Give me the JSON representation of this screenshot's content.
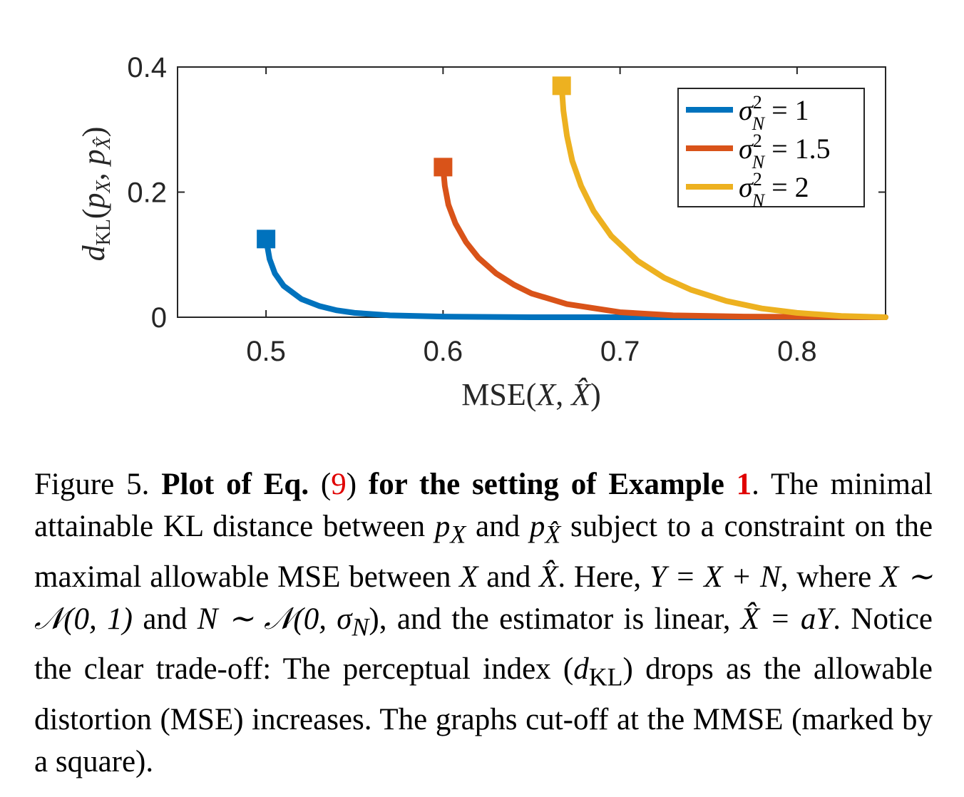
{
  "chart_data": {
    "type": "line",
    "xlabel": "MSE(X, X̂)",
    "ylabel": "d_KL(p_X, p_X̂)",
    "xlim": [
      0.45,
      0.85
    ],
    "ylim": [
      0,
      0.4
    ],
    "xticks": [
      "0.5",
      "0.6",
      "0.7",
      "0.8"
    ],
    "yticks": [
      "0",
      "0.2",
      "0.4"
    ],
    "grid": false,
    "legend_position": "top-right",
    "series": [
      {
        "name": "σ²_N = 1",
        "label_text": "σ",
        "label_sup": "2",
        "label_sub": "N",
        "label_rest": " = 1",
        "color": "#0072BD",
        "mmse_marker": [
          0.5,
          0.125
        ],
        "x": [
          0.5,
          0.502,
          0.505,
          0.51,
          0.52,
          0.53,
          0.54,
          0.55,
          0.57,
          0.6,
          0.65,
          0.7,
          0.85
        ],
        "y": [
          0.125,
          0.093,
          0.07,
          0.05,
          0.029,
          0.018,
          0.011,
          0.007,
          0.003,
          0.001,
          0.0,
          0.0,
          0.0
        ]
      },
      {
        "name": "σ²_N = 1.5",
        "label_text": "σ",
        "label_sup": "2",
        "label_sub": "N",
        "label_rest": " = 1.5",
        "color": "#D95319",
        "mmse_marker": [
          0.6,
          0.24
        ],
        "x": [
          0.6,
          0.601,
          0.603,
          0.607,
          0.613,
          0.62,
          0.63,
          0.64,
          0.65,
          0.67,
          0.7,
          0.73,
          0.77,
          0.85
        ],
        "y": [
          0.24,
          0.21,
          0.18,
          0.15,
          0.12,
          0.095,
          0.07,
          0.052,
          0.038,
          0.021,
          0.008,
          0.003,
          0.001,
          0.0
        ]
      },
      {
        "name": "σ²_N = 2",
        "label_text": "σ",
        "label_sup": "2",
        "label_sub": "N",
        "label_rest": " = 2",
        "color": "#EDB120",
        "mmse_marker": [
          0.667,
          0.37
        ],
        "x": [
          0.667,
          0.668,
          0.67,
          0.673,
          0.678,
          0.685,
          0.695,
          0.71,
          0.725,
          0.74,
          0.76,
          0.78,
          0.8,
          0.825,
          0.85
        ],
        "y": [
          0.37,
          0.33,
          0.29,
          0.25,
          0.21,
          0.17,
          0.13,
          0.09,
          0.063,
          0.044,
          0.026,
          0.014,
          0.007,
          0.002,
          0.0
        ]
      }
    ]
  },
  "caption": {
    "figure_label": "Figure 5.",
    "bold_1": "Plot of Eq.",
    "ref_eq": "9",
    "bold_2": "for the setting of Example",
    "ref_example": "1",
    "sentence_1": ". The minimal attainable KL distance between",
    "p_x": "p",
    "sub_x": "X",
    "and_1": "and",
    "p_xhat": "p",
    "sub_xhat": "X̂",
    "sentence_2": "subject to a constraint on the maximal allowable MSE between",
    "var_x": "X",
    "and_2": "and",
    "var_xhat": "X̂",
    "sentence_3": ". Here,",
    "eq_model": "Y = X + N",
    "where": ", where",
    "x_dist": "X ∼ 𝒩(0, 1)",
    "and_3": "and",
    "n_dist": "N ∼ 𝒩(0, σ",
    "n_dist_sub": "N",
    "n_dist_end": ")",
    "and_4": ", and the estimator is linear,",
    "estimator": "X̂ = aY",
    "sentence_4": ". Notice the clear trade-off: The perceptual index (",
    "dkl": "d",
    "dkl_sub": "KL",
    "sentence_5": ") drops as the allowable distortion (MSE) increases. The graphs cut-off at the MMSE (marked by a square)."
  }
}
